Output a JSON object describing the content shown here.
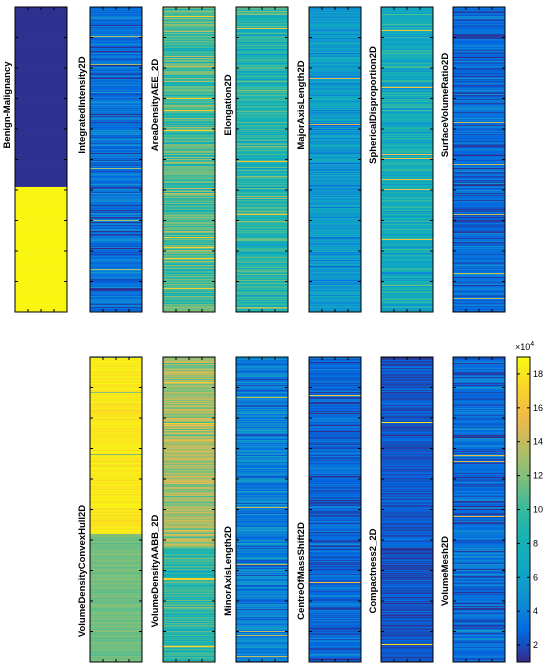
{
  "chart_data": {
    "type": "heatmap",
    "colormap": "parula",
    "colorbar": {
      "exponent_label": "×10",
      "exponent_power": "4",
      "ticks": [
        2,
        4,
        6,
        8,
        10,
        12,
        14,
        16,
        18
      ],
      "range": [
        1,
        19
      ]
    },
    "panels": [
      {
        "label": "Benign-Malignancy",
        "kind": "binary",
        "rows": 100,
        "split_at": 0.59,
        "low_value": 1.2,
        "high_value": 18.8
      },
      {
        "label": "IntegratedIntensity2D",
        "kind": "stripes",
        "base": 3.2,
        "spread": 1.8,
        "highlight": 13,
        "seed": 11
      },
      {
        "label": "AreaDensityAEE_2D",
        "kind": "stripes",
        "base": 10.5,
        "spread": 3.2,
        "highlight": 17,
        "seed": 23
      },
      {
        "label": "Elongation2D",
        "kind": "stripes",
        "base": 9.0,
        "spread": 3.0,
        "highlight": 16,
        "seed": 37
      },
      {
        "label": "MajorAxisLength2D",
        "kind": "stripes",
        "base": 5.5,
        "spread": 2.2,
        "highlight": 15,
        "seed": 41
      },
      {
        "label": "SphericalDisproportion2D",
        "kind": "stripes",
        "base": 7.5,
        "spread": 3.0,
        "highlight": 16,
        "seed": 53
      },
      {
        "label": "SurfaceVolumeRatio2D",
        "kind": "stripes",
        "base": 3.0,
        "spread": 1.6,
        "highlight": 14,
        "seed": 67
      },
      {
        "label": "VolumeDensityConvexHull2D",
        "kind": "stripes",
        "base": 18.2,
        "spread": 0.7,
        "highlight": 12,
        "seed": 71,
        "low_tail_from": 0.58,
        "low_tail_base": 11.5
      },
      {
        "label": "VolumeDensityAABB_2D",
        "kind": "stripes",
        "base": 13.0,
        "spread": 2.5,
        "highlight": 17,
        "seed": 83,
        "low_tail_from": 0.62,
        "low_tail_base": 9.5
      },
      {
        "label": "MinorAxisLength2D",
        "kind": "stripes",
        "base": 4.0,
        "spread": 2.0,
        "highlight": 14,
        "seed": 97
      },
      {
        "label": "CentreOfMassShift2D",
        "kind": "stripes",
        "base": 2.8,
        "spread": 1.6,
        "highlight": 16,
        "seed": 101
      },
      {
        "label": "Compactness2_2D",
        "kind": "stripes",
        "base": 2.2,
        "spread": 1.0,
        "highlight": 18,
        "seed": 113
      },
      {
        "label": "VolumeMesh2D",
        "kind": "stripes",
        "base": 3.0,
        "spread": 1.8,
        "highlight": 15,
        "seed": 127
      }
    ]
  }
}
